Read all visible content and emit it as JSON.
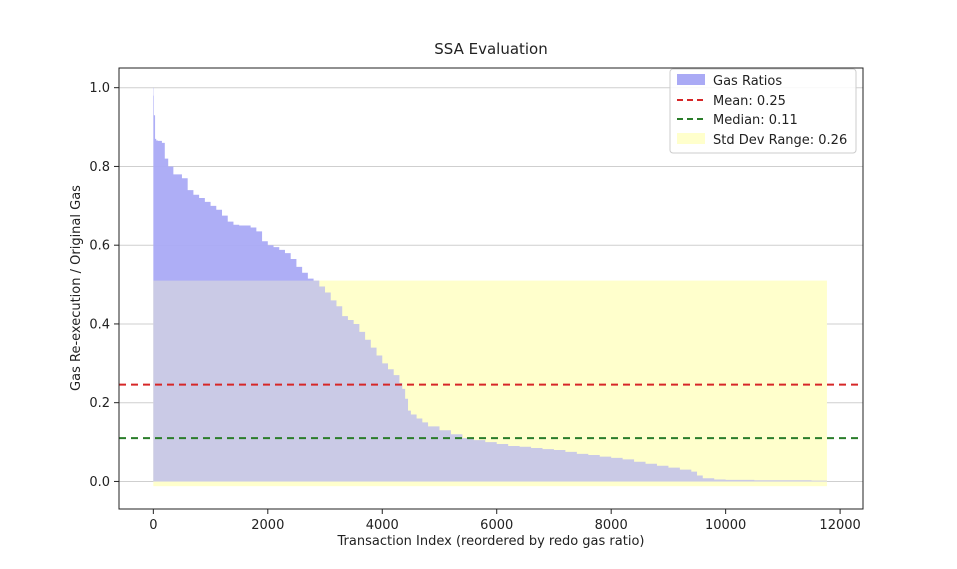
{
  "chart_data": {
    "type": "area",
    "title": "SSA Evaluation",
    "xlabel": "Transaction Index (reordered by redo gas ratio)",
    "ylabel": "Gas Re-execution / Original Gas",
    "xlim": [
      -600,
      12400
    ],
    "ylim": [
      -0.07,
      1.05
    ],
    "xticks": [
      0,
      2000,
      4000,
      6000,
      8000,
      10000,
      12000
    ],
    "xtick_labels": [
      "0",
      "2000",
      "4000",
      "6000",
      "8000",
      "10000",
      "12000"
    ],
    "yticks": [
      0.0,
      0.2,
      0.4,
      0.6,
      0.8,
      1.0
    ],
    "ytick_labels": [
      "0.0",
      "0.2",
      "0.4",
      "0.6",
      "0.8",
      "1.0"
    ],
    "grid": "y",
    "legend_position": "top-right",
    "series": [
      {
        "name": "Gas Ratios",
        "kind": "area",
        "color": "#aaaaf5",
        "x": [
          0,
          5,
          10,
          30,
          50,
          80,
          110,
          150,
          200,
          260,
          350,
          500,
          600,
          700,
          800,
          900,
          1000,
          1100,
          1200,
          1300,
          1400,
          1500,
          1600,
          1700,
          1800,
          1900,
          2000,
          2100,
          2200,
          2300,
          2400,
          2500,
          2600,
          2700,
          2800,
          2900,
          3000,
          3100,
          3200,
          3300,
          3400,
          3500,
          3600,
          3700,
          3800,
          3900,
          4000,
          4100,
          4200,
          4300,
          4350,
          4400,
          4450,
          4500,
          4600,
          4700,
          4800,
          5000,
          5200,
          5400,
          5600,
          5800,
          6000,
          6200,
          6400,
          6600,
          6800,
          7000,
          7200,
          7400,
          7600,
          7800,
          8000,
          8200,
          8400,
          8600,
          8800,
          9000,
          9200,
          9400,
          9500,
          9600,
          9800,
          10000,
          10500,
          11000,
          11500,
          11770
        ],
        "values": [
          1.0,
          0.98,
          0.93,
          0.87,
          0.866,
          0.865,
          0.865,
          0.86,
          0.82,
          0.8,
          0.78,
          0.77,
          0.74,
          0.728,
          0.72,
          0.71,
          0.7,
          0.69,
          0.675,
          0.66,
          0.652,
          0.65,
          0.65,
          0.645,
          0.635,
          0.61,
          0.6,
          0.595,
          0.588,
          0.58,
          0.565,
          0.545,
          0.53,
          0.515,
          0.51,
          0.495,
          0.48,
          0.46,
          0.445,
          0.42,
          0.41,
          0.4,
          0.38,
          0.36,
          0.34,
          0.32,
          0.3,
          0.285,
          0.27,
          0.25,
          0.235,
          0.21,
          0.18,
          0.17,
          0.16,
          0.15,
          0.14,
          0.13,
          0.12,
          0.11,
          0.105,
          0.1,
          0.095,
          0.09,
          0.088,
          0.085,
          0.082,
          0.08,
          0.075,
          0.07,
          0.067,
          0.063,
          0.06,
          0.056,
          0.05,
          0.045,
          0.04,
          0.035,
          0.03,
          0.025,
          0.015,
          0.008,
          0.005,
          0.004,
          0.003,
          0.003,
          0.002,
          0.001
        ]
      },
      {
        "name": "Mean: 0.25",
        "kind": "hline",
        "value": 0.246,
        "color": "#d62728",
        "dash": "dashed"
      },
      {
        "name": "Median: 0.11",
        "kind": "hline",
        "value": 0.11,
        "color": "#2a7d2a",
        "dash": "dashed"
      },
      {
        "name": "Std Dev Range: 0.26",
        "kind": "band",
        "x_range": [
          0,
          11770
        ],
        "y_range": [
          -0.012,
          0.51
        ],
        "color": "#ffffcc"
      }
    ]
  }
}
